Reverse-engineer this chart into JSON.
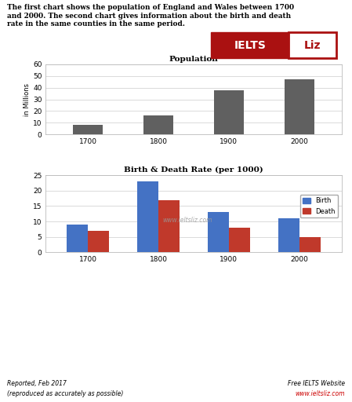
{
  "title_text": "The first chart shows the population of England and Wales between 1700\nand 2000. The second chart gives information about the birth and death\nrate in the same counties in the same period.",
  "pop_title": "Population",
  "pop_years": [
    "1700",
    "1800",
    "1900",
    "2000"
  ],
  "pop_values": [
    8,
    16,
    38,
    47
  ],
  "pop_bar_color": "#606060",
  "pop_ylabel": "in Millions",
  "pop_ylim": [
    0,
    60
  ],
  "pop_yticks": [
    0,
    10,
    20,
    30,
    40,
    50,
    60
  ],
  "bd_title": "Birth & Death Rate (per 1000)",
  "bd_years": [
    "1700",
    "1800",
    "1900",
    "2000"
  ],
  "birth_values": [
    9,
    23,
    13,
    11
  ],
  "death_values": [
    7,
    17,
    8,
    5
  ],
  "birth_color": "#4472C4",
  "death_color": "#C0392B",
  "bd_ylim": [
    0,
    25
  ],
  "bd_yticks": [
    0,
    5,
    10,
    15,
    20,
    25
  ],
  "watermark": "www.ieltsliz.com",
  "footer_left1": "Reported, Feb 2017",
  "footer_left2": "(reproduced as accurately as possible)",
  "footer_right1": "Free IELTS Website",
  "footer_right2": "www.ieltsliz.com",
  "bg_color": "#ffffff"
}
